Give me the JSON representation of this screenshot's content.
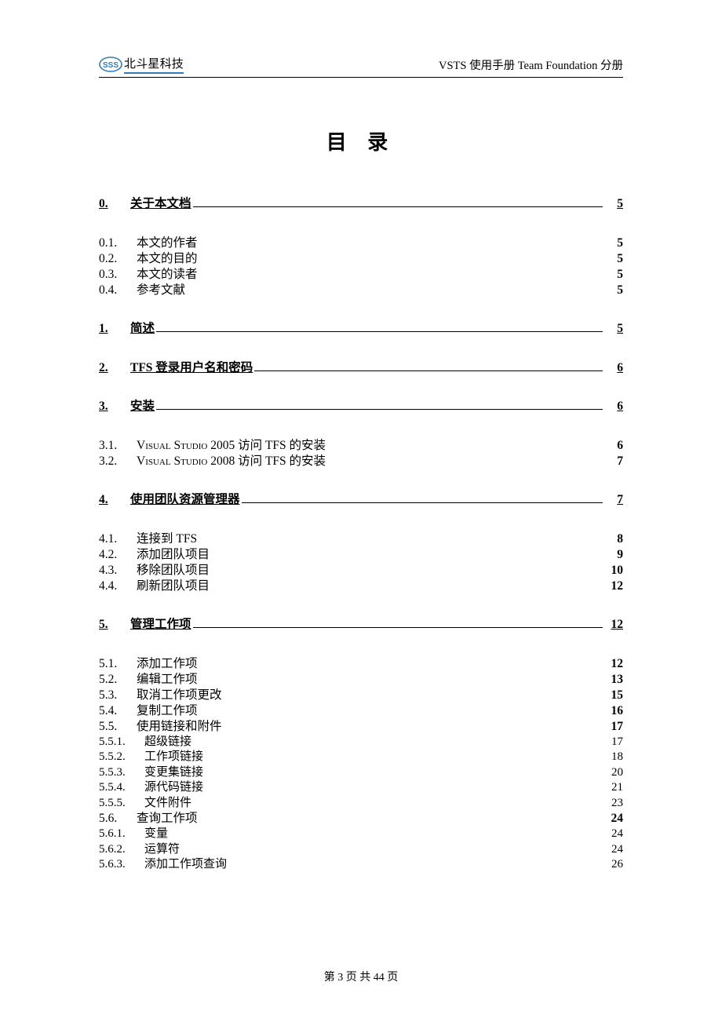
{
  "header": {
    "company_name": "北斗星科技",
    "doc_title_prefix": "VSTS 使用手册  Team Foundation 分册",
    "logo": {
      "bg_color": "#ffffff",
      "ring_color": "#347ab6",
      "text_color": "#347ab6",
      "letters": "SSS"
    }
  },
  "toc_heading": "目 录",
  "entries": [
    {
      "level": 1,
      "num": "0.",
      "title": "关于本文档",
      "page": "5"
    },
    {
      "level": 2,
      "num": "0.1.",
      "title": "本文的作者",
      "page": "5"
    },
    {
      "level": 2,
      "num": "0.2.",
      "title": "本文的目的",
      "page": "5"
    },
    {
      "level": 2,
      "num": "0.3.",
      "title": "本文的读者",
      "page": "5"
    },
    {
      "level": 2,
      "num": "0.4.",
      "title": "参考文献",
      "page": "5"
    },
    {
      "level": 1,
      "num": "1.",
      "title": "简述",
      "page": "5"
    },
    {
      "level": 1,
      "num": "2.",
      "title": "TFS 登录用户名和密码",
      "page": "6"
    },
    {
      "level": 1,
      "num": "3.",
      "title": "安装",
      "page": "6"
    },
    {
      "level": 2,
      "num": "3.1.",
      "title_html": "V<span class=\"sc\">isual</span> S<span class=\"sc\">tudio</span> 2005 访问 TFS 的安装",
      "page": "6"
    },
    {
      "level": 2,
      "num": "3.2.",
      "title_html": "V<span class=\"sc\">isual</span> S<span class=\"sc\">tudio</span> 2008 访问 TFS 的安装",
      "page": "7"
    },
    {
      "level": 1,
      "num": "4.",
      "title": "使用团队资源管理器",
      "page": "7"
    },
    {
      "level": 2,
      "num": "4.1.",
      "title": "连接到 TFS",
      "page": "8"
    },
    {
      "level": 2,
      "num": "4.2.",
      "title": "添加团队项目",
      "page": "9"
    },
    {
      "level": 2,
      "num": "4.3.",
      "title": "移除团队项目",
      "page": "10"
    },
    {
      "level": 2,
      "num": "4.4.",
      "title": "刷新团队项目",
      "page": "12"
    },
    {
      "level": 1,
      "num": "5.",
      "title": "管理工作项",
      "page": "12"
    },
    {
      "level": 2,
      "num": "5.1.",
      "title": "添加工作项",
      "page": "12"
    },
    {
      "level": 2,
      "num": "5.2.",
      "title": "编辑工作项",
      "page": "13"
    },
    {
      "level": 2,
      "num": "5.3.",
      "title": "取消工作项更改",
      "page": "15"
    },
    {
      "level": 2,
      "num": "5.4.",
      "title": "复制工作项",
      "page": "16"
    },
    {
      "level": 2,
      "num": "5.5.",
      "title": "使用链接和附件",
      "page": "17"
    },
    {
      "level": 3,
      "num": "5.5.1.",
      "title": "超级链接",
      "page": "17"
    },
    {
      "level": 3,
      "num": "5.5.2.",
      "title": "工作项链接",
      "page": "18"
    },
    {
      "level": 3,
      "num": "5.5.3.",
      "title": "变更集链接",
      "page": "20"
    },
    {
      "level": 3,
      "num": "5.5.4.",
      "title": "源代码链接",
      "page": "21"
    },
    {
      "level": 3,
      "num": "5.5.5.",
      "title": "文件附件",
      "page": "23"
    },
    {
      "level": 2,
      "num": "5.6.",
      "title": "查询工作项",
      "page": "24"
    },
    {
      "level": 3,
      "num": "5.6.1.",
      "title": "变量",
      "page": "24"
    },
    {
      "level": 3,
      "num": "5.6.2.",
      "title": "运算符",
      "page": "24"
    },
    {
      "level": 3,
      "num": "5.6.3.",
      "title": "添加工作项查询",
      "page": "26"
    }
  ],
  "footer": {
    "text": "第 3 页 共 44 页"
  }
}
